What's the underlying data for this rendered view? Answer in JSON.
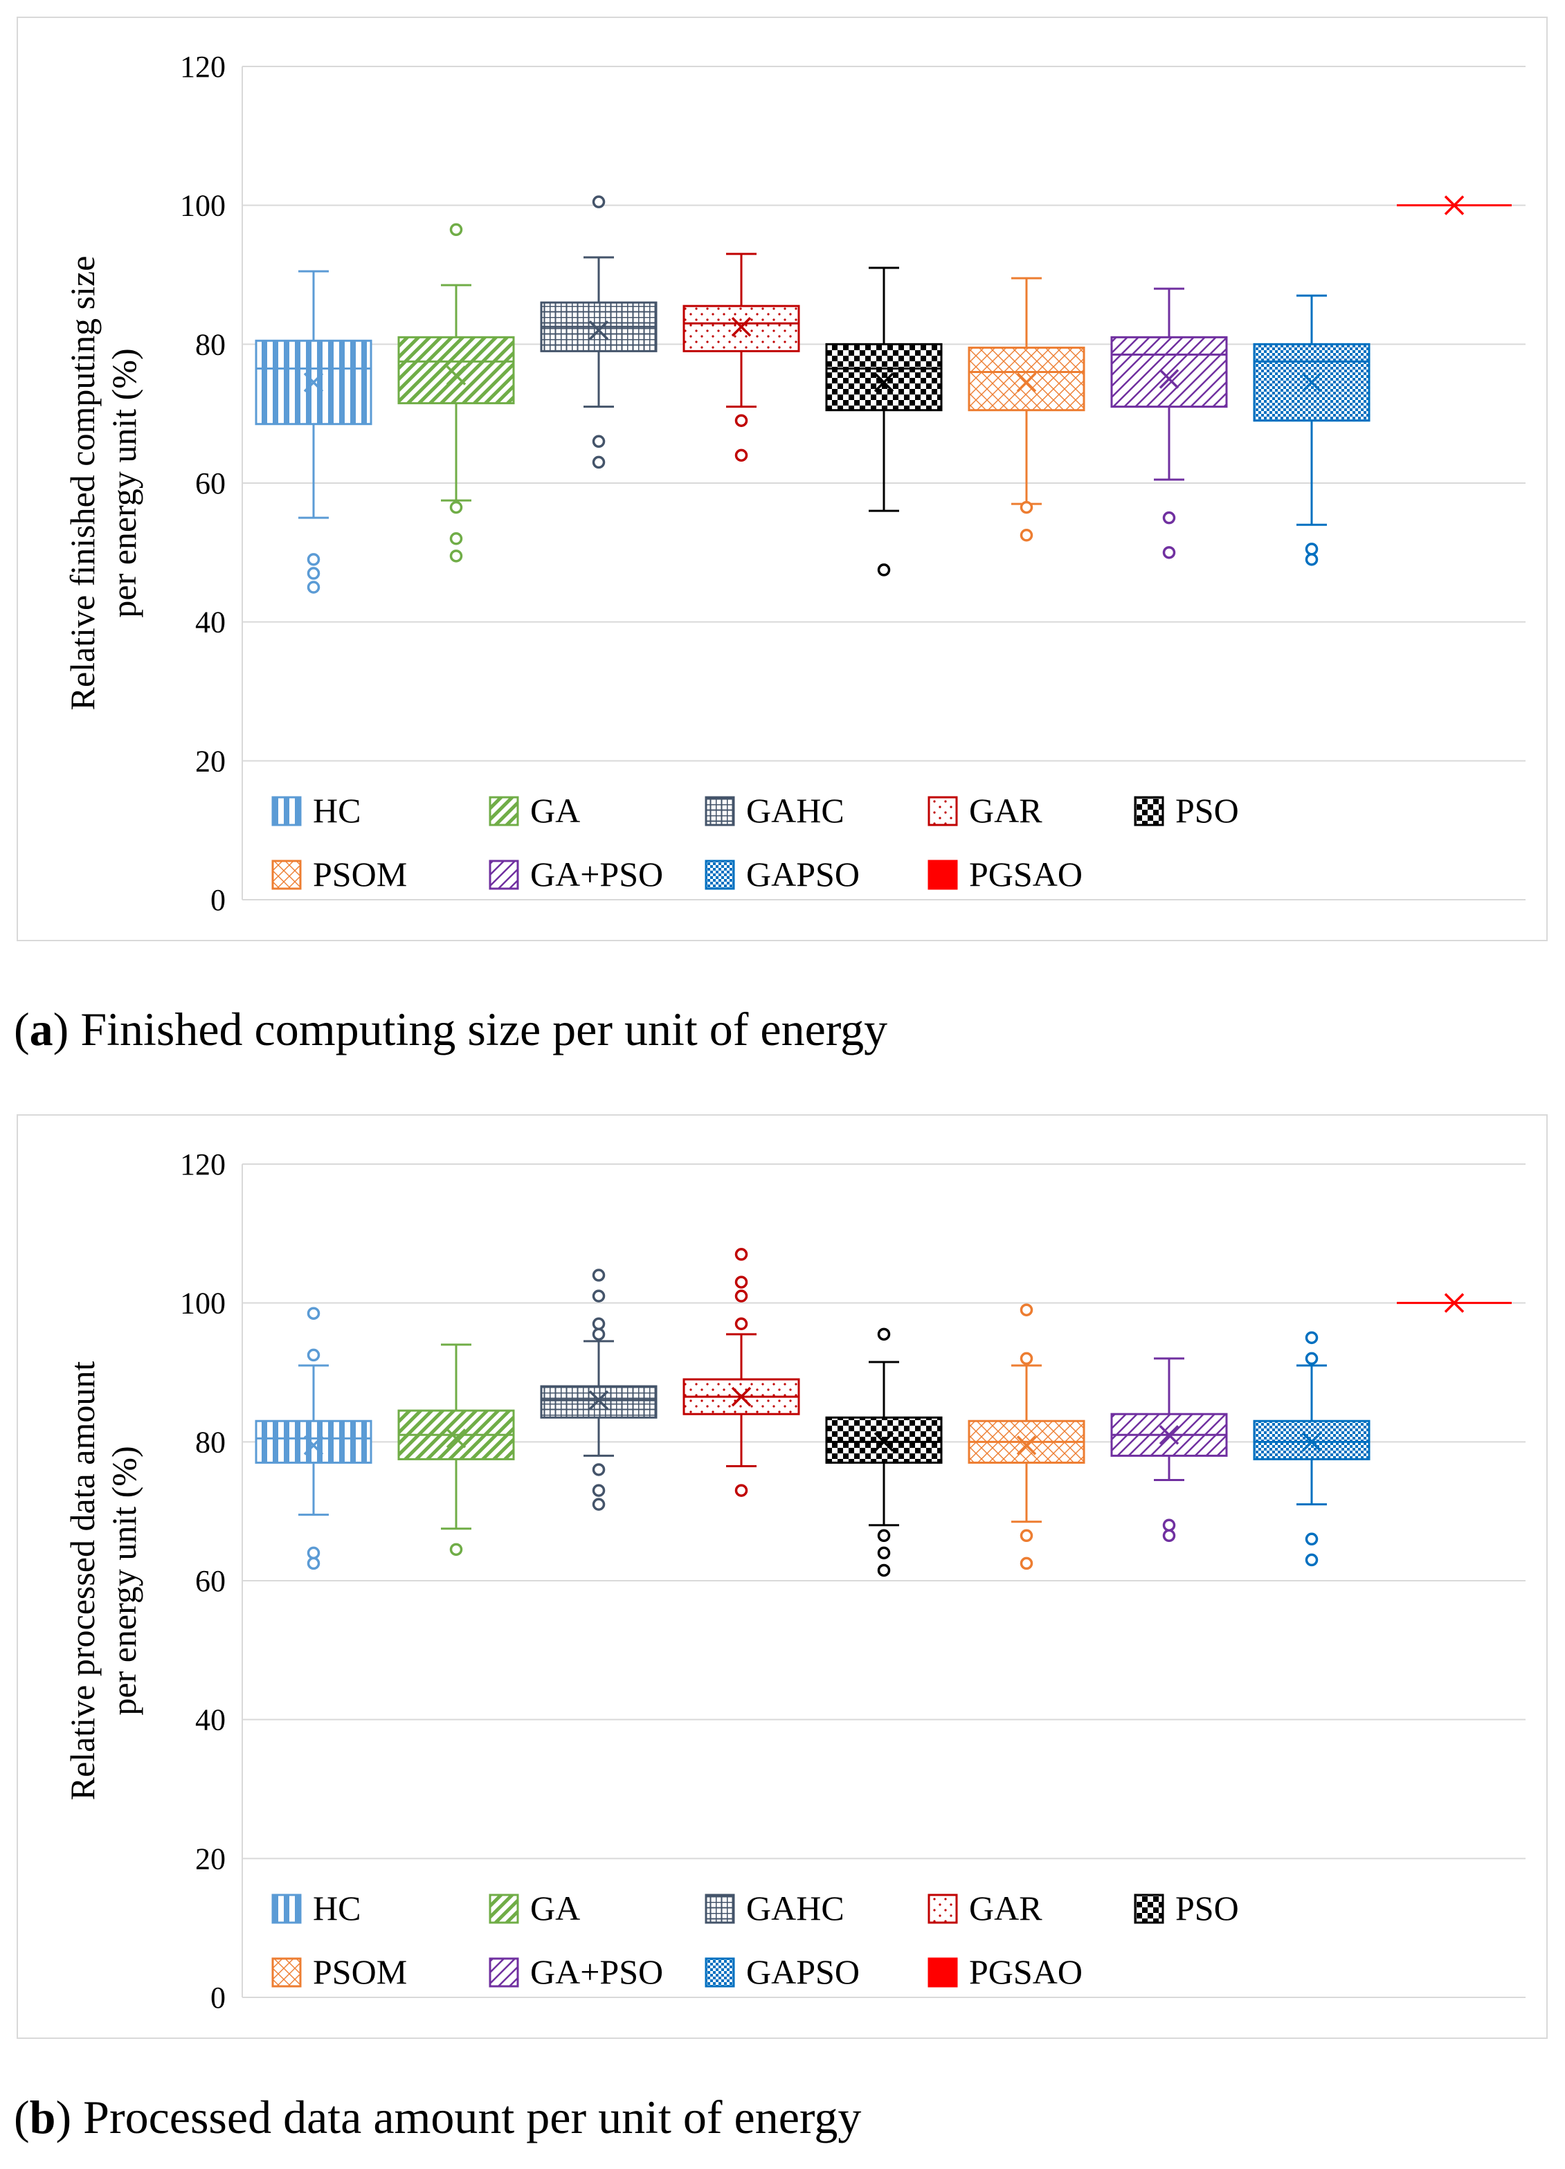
{
  "charts": [
    {
      "caption_letter": "a",
      "caption_text": "Finished computing size per unit of energy"
    },
    {
      "caption_letter": "b",
      "caption_text": "Processed data amount per unit of energy"
    }
  ],
  "chart_data": [
    {
      "type": "box",
      "title": "",
      "xlabel": "",
      "ylabel_line1": "Relative finished computing size",
      "ylabel_line2": "per energy unit  (%)",
      "ylim": [
        0,
        120
      ],
      "yticks": [
        "0",
        "20",
        "40",
        "60",
        "80",
        "100",
        "120"
      ],
      "grid": true,
      "legend": [
        {
          "name": "HC",
          "color": "#5b9bd5",
          "pattern": "vlines"
        },
        {
          "name": "GA",
          "color": "#70ad47",
          "pattern": "diag"
        },
        {
          "name": "GAHC",
          "color": "#44546a",
          "pattern": "grid"
        },
        {
          "name": "GAR",
          "color": "#c00000",
          "pattern": "dots"
        },
        {
          "name": "PSO",
          "color": "#000000",
          "pattern": "checker"
        },
        {
          "name": "PSOM",
          "color": "#ed7d31",
          "pattern": "cross"
        },
        {
          "name": "GA+PSO",
          "color": "#7030a0",
          "pattern": "diag2"
        },
        {
          "name": "GAPSO",
          "color": "#0070c0",
          "pattern": "smallcheck"
        },
        {
          "name": "PGSAO",
          "color": "#ff0000",
          "pattern": "solid"
        }
      ],
      "series": [
        {
          "name": "HC",
          "min": 55,
          "q1": 68.5,
          "median": 76.5,
          "q3": 80.5,
          "max": 90.5,
          "mean": 74.5,
          "outliers": [
            49,
            47,
            45
          ]
        },
        {
          "name": "GA",
          "min": 57.5,
          "q1": 71.5,
          "median": 77.5,
          "q3": 81,
          "max": 88.5,
          "mean": 75.5,
          "outliers": [
            96.5,
            56.5,
            52,
            49.5
          ]
        },
        {
          "name": "GAHC",
          "min": 71,
          "q1": 79,
          "median": 82.5,
          "q3": 86,
          "max": 92.5,
          "mean": 82,
          "outliers": [
            100.5,
            66,
            63
          ]
        },
        {
          "name": "GAR",
          "min": 71,
          "q1": 79,
          "median": 83,
          "q3": 85.5,
          "max": 93,
          "mean": 82.5,
          "outliers": [
            69,
            64
          ]
        },
        {
          "name": "PSO",
          "min": 56,
          "q1": 70.5,
          "median": 76.5,
          "q3": 80,
          "max": 91,
          "mean": 74.5,
          "outliers": [
            47.5
          ]
        },
        {
          "name": "PSOM",
          "min": 57,
          "q1": 70.5,
          "median": 76,
          "q3": 79.5,
          "max": 89.5,
          "mean": 74.5,
          "outliers": [
            56.5,
            52.5
          ]
        },
        {
          "name": "GA+PSO",
          "min": 60.5,
          "q1": 71,
          "median": 78.5,
          "q3": 81,
          "max": 88,
          "mean": 75,
          "outliers": [
            55,
            50
          ]
        },
        {
          "name": "GAPSO",
          "min": 54,
          "q1": 69,
          "median": 77.5,
          "q3": 80,
          "max": 87,
          "mean": 74.5,
          "outliers": [
            50.5,
            49
          ]
        },
        {
          "name": "PGSAO",
          "min": 100,
          "q1": 100,
          "median": 100,
          "q3": 100,
          "max": 100,
          "mean": 100,
          "outliers": []
        }
      ]
    },
    {
      "type": "box",
      "title": "",
      "xlabel": "",
      "ylabel_line1": "Relative processed data amount",
      "ylabel_line2": "per energy unit  (%)",
      "ylim": [
        0,
        120
      ],
      "yticks": [
        "0",
        "20",
        "40",
        "60",
        "80",
        "100",
        "120"
      ],
      "grid": true,
      "legend": [
        {
          "name": "HC",
          "color": "#5b9bd5",
          "pattern": "vlines"
        },
        {
          "name": "GA",
          "color": "#70ad47",
          "pattern": "diag"
        },
        {
          "name": "GAHC",
          "color": "#44546a",
          "pattern": "grid"
        },
        {
          "name": "GAR",
          "color": "#c00000",
          "pattern": "dots"
        },
        {
          "name": "PSO",
          "color": "#000000",
          "pattern": "checker"
        },
        {
          "name": "PSOM",
          "color": "#ed7d31",
          "pattern": "cross"
        },
        {
          "name": "GA+PSO",
          "color": "#7030a0",
          "pattern": "diag2"
        },
        {
          "name": "GAPSO",
          "color": "#0070c0",
          "pattern": "smallcheck"
        },
        {
          "name": "PGSAO",
          "color": "#ff0000",
          "pattern": "solid"
        }
      ],
      "series": [
        {
          "name": "HC",
          "min": 69.5,
          "q1": 77,
          "median": 80.5,
          "q3": 83,
          "max": 91,
          "mean": 79.5,
          "outliers": [
            98.5,
            92.5,
            64,
            62.5
          ]
        },
        {
          "name": "GA",
          "min": 67.5,
          "q1": 77.5,
          "median": 81,
          "q3": 84.5,
          "max": 94,
          "mean": 80.5,
          "outliers": [
            64.5
          ]
        },
        {
          "name": "GAHC",
          "min": 78,
          "q1": 83.5,
          "median": 86,
          "q3": 88,
          "max": 94.5,
          "mean": 86,
          "outliers": [
            104,
            101,
            97,
            95.5,
            76,
            73,
            71
          ]
        },
        {
          "name": "GAR",
          "min": 76.5,
          "q1": 84,
          "median": 86.5,
          "q3": 89,
          "max": 95.5,
          "mean": 86.5,
          "outliers": [
            107,
            103,
            101,
            97,
            73
          ]
        },
        {
          "name": "PSO",
          "min": 68,
          "q1": 77,
          "median": 80,
          "q3": 83.5,
          "max": 91.5,
          "mean": 80,
          "outliers": [
            95.5,
            66.5,
            64,
            61.5
          ]
        },
        {
          "name": "PSOM",
          "min": 68.5,
          "q1": 77,
          "median": 80,
          "q3": 83,
          "max": 91,
          "mean": 79.5,
          "outliers": [
            99,
            92,
            66.5,
            62.5
          ]
        },
        {
          "name": "GA+PSO",
          "min": 74.5,
          "q1": 78,
          "median": 81,
          "q3": 84,
          "max": 92,
          "mean": 81,
          "outliers": [
            68,
            66.5
          ]
        },
        {
          "name": "GAPSO",
          "min": 71,
          "q1": 77.5,
          "median": 80,
          "q3": 83,
          "max": 91,
          "mean": 80,
          "outliers": [
            95,
            92,
            66,
            63
          ]
        },
        {
          "name": "PGSAO",
          "min": 100,
          "q1": 100,
          "median": 100,
          "q3": 100,
          "max": 100,
          "mean": 100,
          "outliers": []
        }
      ]
    }
  ]
}
